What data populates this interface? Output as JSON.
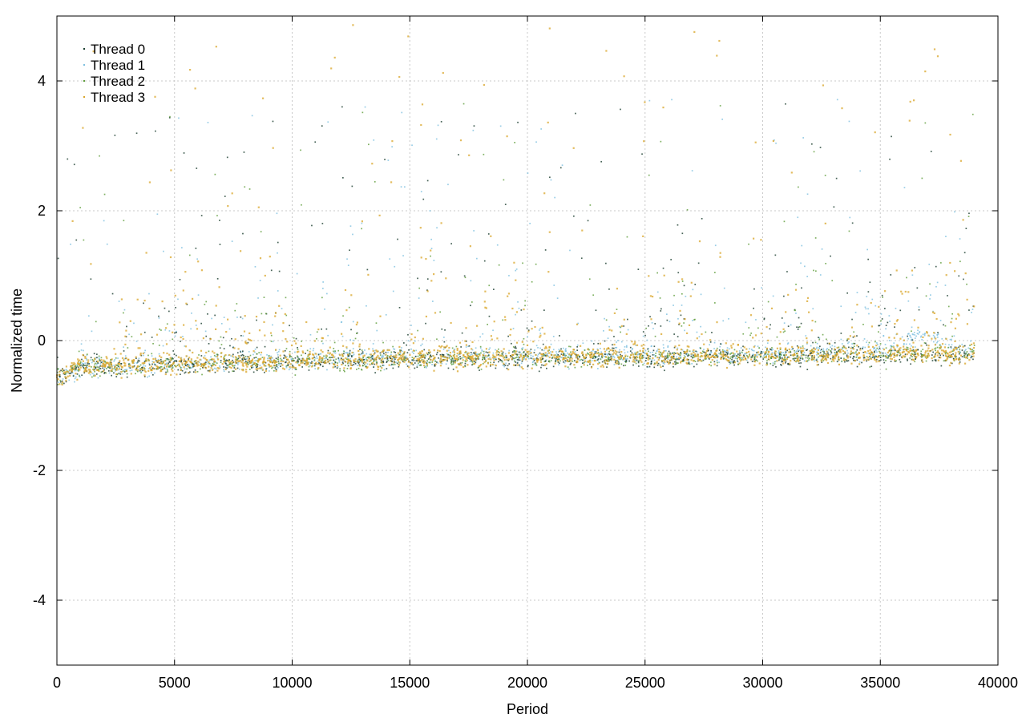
{
  "chart_data": {
    "type": "scatter",
    "title": "",
    "xlabel": "Period",
    "ylabel": "Normalized time",
    "xlim": [
      0,
      40000
    ],
    "ylim": [
      -5,
      5
    ],
    "xticks": [
      0,
      5000,
      10000,
      15000,
      20000,
      25000,
      30000,
      35000,
      40000
    ],
    "yticks": [
      -4,
      -2,
      0,
      2,
      4
    ],
    "xtick_labels": [
      "0",
      "5000",
      "10000",
      "15000",
      "20000",
      "25000",
      "30000",
      "35000",
      "40000"
    ],
    "ytick_labels": [
      "-4",
      "-2",
      "0",
      "2",
      "4"
    ],
    "grid": true,
    "legend_position": "top-left",
    "x_max_observed": 39000,
    "series": [
      {
        "name": "Thread 0",
        "color": "#1a3d2e",
        "trend": [
          [
            0,
            -0.58
          ],
          [
            1000,
            -0.45
          ],
          [
            5000,
            -0.38
          ],
          [
            10000,
            -0.33
          ],
          [
            15000,
            -0.3
          ],
          [
            20000,
            -0.28
          ],
          [
            25000,
            -0.27
          ],
          [
            30000,
            -0.26
          ],
          [
            35000,
            -0.24
          ],
          [
            39000,
            -0.22
          ]
        ]
      },
      {
        "name": "Thread 1",
        "color": "#7ec0e0",
        "trend": [
          [
            0,
            -0.57
          ],
          [
            1000,
            -0.44
          ],
          [
            5000,
            -0.36
          ],
          [
            10000,
            -0.3
          ],
          [
            15000,
            -0.27
          ],
          [
            20000,
            -0.25
          ],
          [
            25000,
            -0.23
          ],
          [
            30000,
            -0.22
          ],
          [
            35000,
            -0.15
          ],
          [
            37000,
            0.1
          ],
          [
            39000,
            -0.18
          ]
        ]
      },
      {
        "name": "Thread 2",
        "color": "#5e9c3a",
        "trend": [
          [
            0,
            -0.58
          ],
          [
            1000,
            -0.45
          ],
          [
            5000,
            -0.37
          ],
          [
            10000,
            -0.32
          ],
          [
            15000,
            -0.29
          ],
          [
            20000,
            -0.27
          ],
          [
            25000,
            -0.26
          ],
          [
            30000,
            -0.25
          ],
          [
            35000,
            -0.22
          ],
          [
            39000,
            -0.21
          ]
        ]
      },
      {
        "name": "Thread 3",
        "color": "#d9a52a",
        "trend": [
          [
            0,
            -0.56
          ],
          [
            1000,
            -0.43
          ],
          [
            5000,
            -0.36
          ],
          [
            10000,
            -0.31
          ],
          [
            15000,
            -0.28
          ],
          [
            20000,
            -0.26
          ],
          [
            25000,
            -0.25
          ],
          [
            30000,
            -0.24
          ],
          [
            35000,
            -0.21
          ],
          [
            39000,
            -0.2
          ]
        ]
      }
    ]
  }
}
